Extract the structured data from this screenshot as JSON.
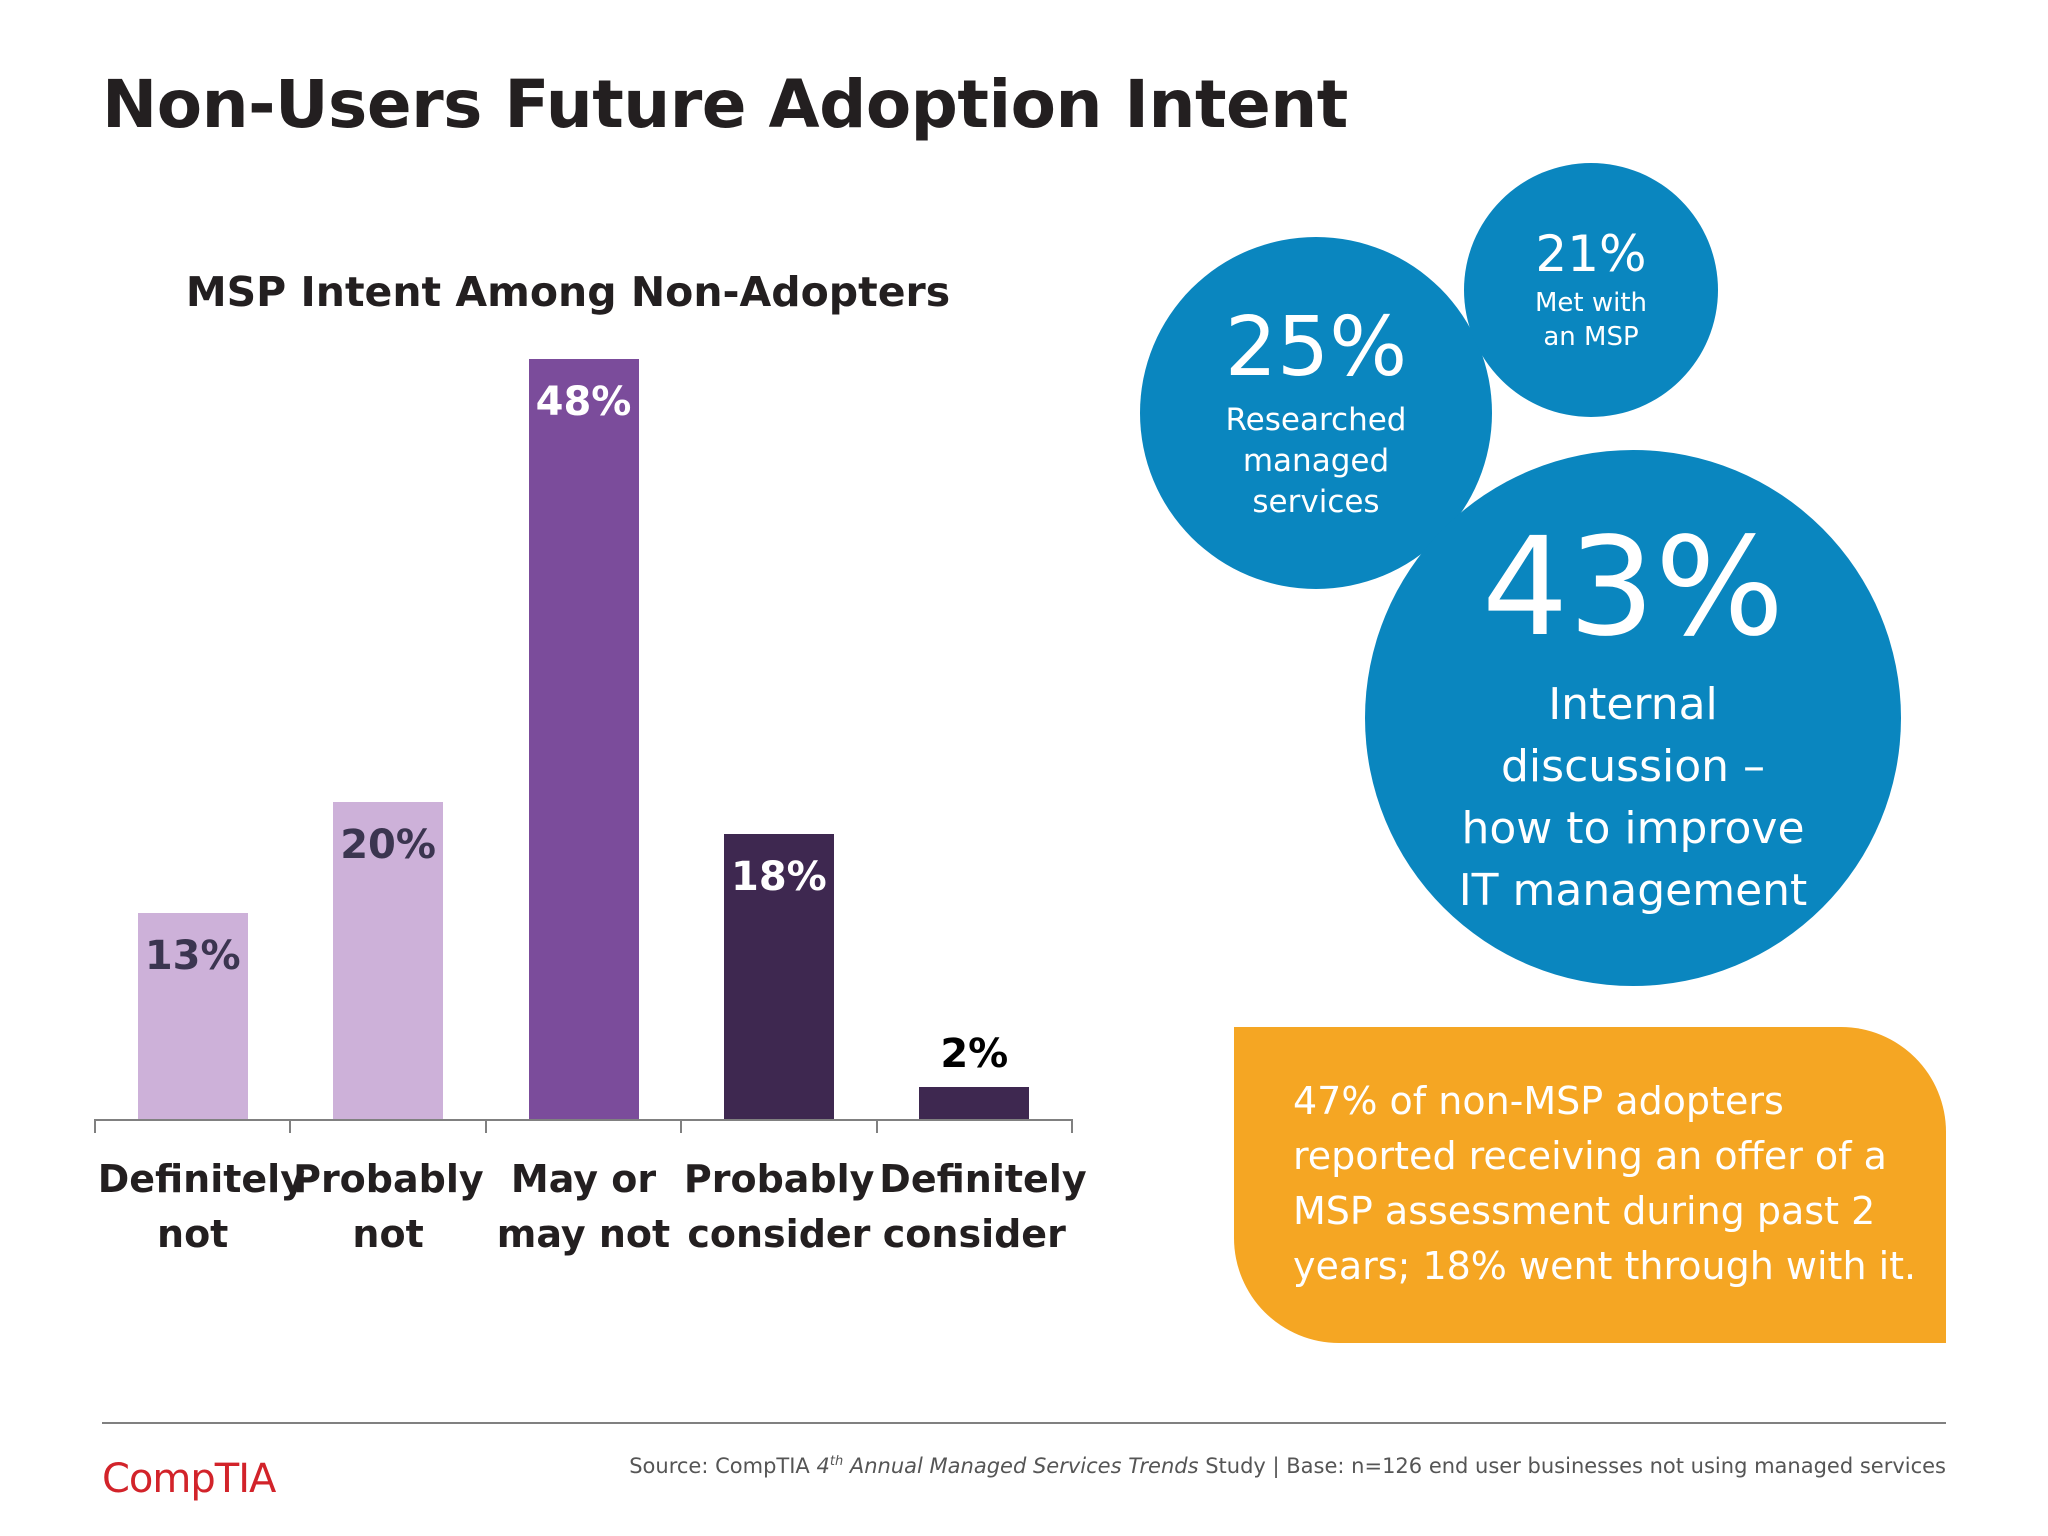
{
  "title": "Non-Users Future Adoption Intent",
  "chart_data": {
    "type": "bar",
    "title": "MSP Intent Among Non-Adopters",
    "categories": [
      "Definitely not",
      "Probably not",
      "May or may not",
      "Probably consider",
      "Definitely consider"
    ],
    "values": [
      13,
      20,
      48,
      18,
      2
    ],
    "value_labels": [
      "13%",
      "20%",
      "48%",
      "18%",
      "2%"
    ],
    "colors": [
      "#cdb1d9",
      "#cdb1d9",
      "#7b4c9b",
      "#3e2850",
      "#3e2850"
    ]
  },
  "bubbles": [
    {
      "value": "25%",
      "caption": [
        "Researched",
        "managed",
        "services"
      ]
    },
    {
      "value": "21%",
      "caption": [
        "Met with",
        "an MSP"
      ]
    },
    {
      "value": "43%",
      "caption": [
        "Internal",
        "discussion –",
        "how to improve",
        "IT management"
      ]
    }
  ],
  "callout": [
    "47% of non-MSP adopters",
    "reported receiving an offer of a",
    "MSP assessment during past 2",
    "years; 18% went through with it."
  ],
  "source": {
    "prefix": "Source: CompTIA",
    "ordinal": "4",
    "ordinal_suffix": "th",
    "study": "Annual Managed Services Trends",
    "suffix": "Study | Base: n=126 end user businesses not using managed services"
  },
  "logo": "CompTIA"
}
